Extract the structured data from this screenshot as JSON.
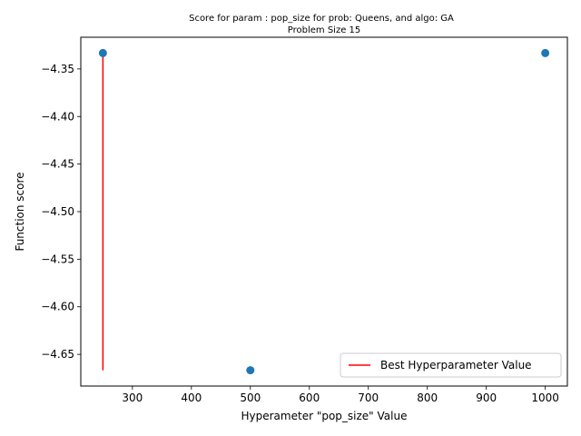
{
  "chart_data": {
    "type": "scatter",
    "title": "Score for param : pop_size for prob: Queens, and algo: GA",
    "subtitle": "Problem Size 15",
    "xlabel": "Hyperameter \"pop_size\" Value",
    "ylabel": "Function score",
    "xlim": [
      212.5,
      1037.5
    ],
    "ylim": [
      -4.6833,
      -4.3167
    ],
    "xticks": [
      300,
      400,
      500,
      600,
      700,
      800,
      900,
      1000
    ],
    "yticks": [
      -4.35,
      -4.4,
      -4.45,
      -4.5,
      -4.55,
      -4.6,
      -4.65
    ],
    "xtick_labels": [
      "300",
      "400",
      "500",
      "600",
      "700",
      "800",
      "900",
      "1000"
    ],
    "ytick_labels": [
      "−4.35",
      "−4.40",
      "−4.45",
      "−4.50",
      "−4.55",
      "−4.60",
      "−4.65"
    ],
    "grid": false,
    "legend_position": "lower-right",
    "series": [
      {
        "type": "scatter",
        "color": "#1f77b4",
        "points": [
          {
            "x": 250,
            "y": -4.3333
          },
          {
            "x": 500,
            "y": -4.6667
          },
          {
            "x": 1000,
            "y": -4.3333
          }
        ]
      },
      {
        "type": "line",
        "name": "Best Hyperparameter Value",
        "color": "#ff0000",
        "points": [
          {
            "x": 250,
            "y": -4.6667
          },
          {
            "x": 250,
            "y": -4.3333
          }
        ]
      }
    ]
  }
}
